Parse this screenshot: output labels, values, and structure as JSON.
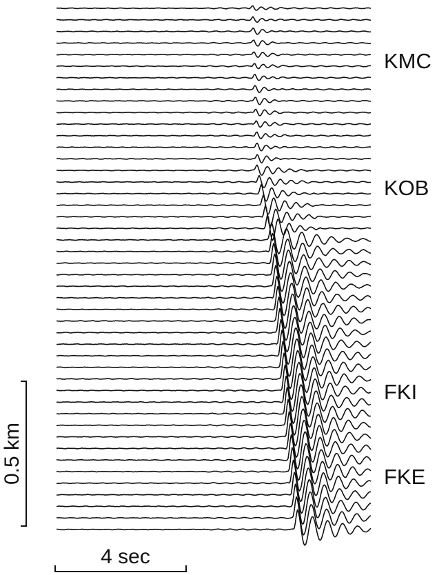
{
  "station_labels": [
    "KMC",
    "KOB",
    "FKI",
    "FKE"
  ],
  "distance_scale": {
    "label": "0.5 km"
  },
  "time_scale": {
    "label": "4 sec"
  }
}
